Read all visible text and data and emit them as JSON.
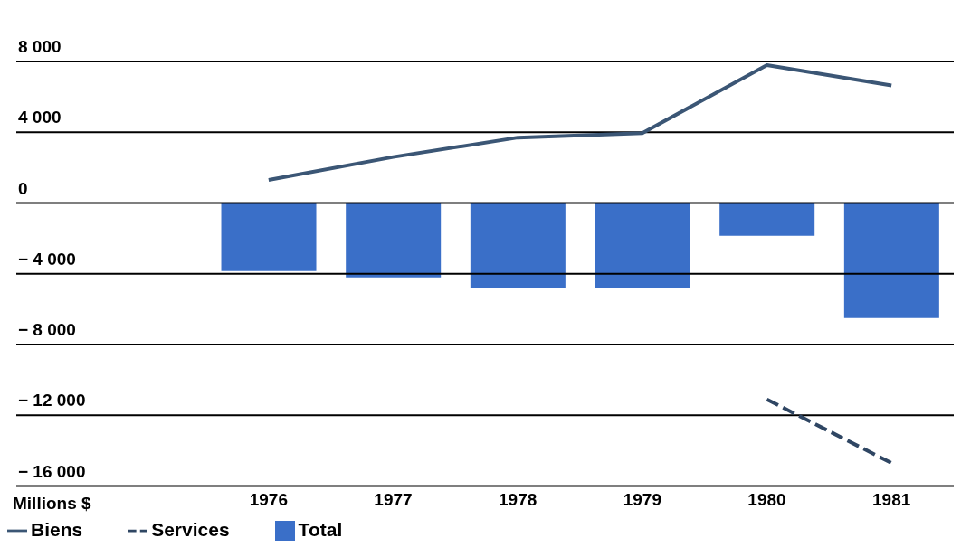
{
  "chart_data": {
    "type": "bar",
    "ylabel": "Millions $",
    "categories": [
      "1976",
      "1977",
      "1978",
      "1979",
      "1980",
      "1981"
    ],
    "series": [
      {
        "name": "Biens",
        "type": "line",
        "color": "#3b5675",
        "line_style": "solid",
        "values": [
          1300,
          2600,
          3700,
          3950,
          7800,
          6650
        ]
      },
      {
        "name": "Total",
        "color": "#3a6fc8",
        "values": [
          -3850,
          -4200,
          -4800,
          -4800,
          -1850,
          -6500
        ]
      },
      {
        "name": "Services",
        "type": "line",
        "color": "#2f4663",
        "line_style": "dashed",
        "values": [
          null,
          null,
          null,
          null,
          -11100,
          -14700
        ]
      }
    ],
    "ylim": [
      -16000,
      8000
    ],
    "yticks": [
      {
        "value": 8000,
        "label": "8 000"
      },
      {
        "value": 4000,
        "label": "4 000"
      },
      0,
      {
        "value": -4000,
        "label": "− 4 000"
      },
      {
        "value": -8000,
        "label": "− 8 000"
      },
      {
        "value": -12000,
        "label": "− 12 000"
      },
      {
        "value": -16000,
        "label": "− 16 000"
      }
    ],
    "grid": "y",
    "legend": "bottom",
    "marker": "none"
  }
}
